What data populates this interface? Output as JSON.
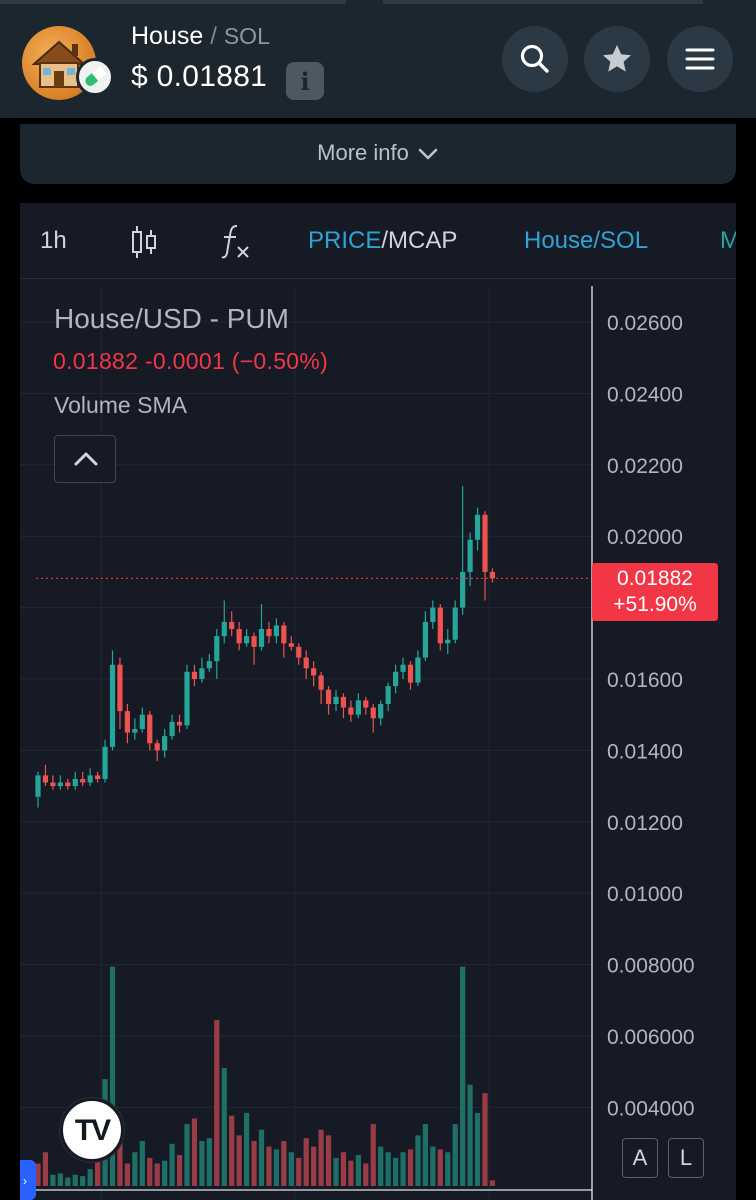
{
  "header": {
    "token_name": "House",
    "separator": "/",
    "quote_symbol": "SOL",
    "price": "$ 0.01881",
    "info_label": "i"
  },
  "icons": {
    "avatar": "house-avatar-icon",
    "badge": "pill-badge-icon",
    "search": "search-icon",
    "favorite": "star-icon",
    "menu": "hamburger-menu-icon",
    "chevron": "chevron-down-icon",
    "candles": "candlestick-icon",
    "indicators": "fx-icon"
  },
  "more_info": {
    "label": "More info"
  },
  "toolbar": {
    "interval": "1h",
    "price_label": "PRICE",
    "mcap_label": "/MCAP",
    "pair_label": "House/SOL",
    "overflow_label": "M"
  },
  "legend": {
    "title": "House/USD - PUM",
    "values": "0.01882  -0.0001 (−0.50%)",
    "volume_label": "Volume SMA"
  },
  "price_tag": {
    "price": "0.01882",
    "change": "+51.90%"
  },
  "colors": {
    "up": "#26a69a",
    "down": "#ef5350",
    "accent_blue": "#2ea3d6",
    "tag_red": "#f23645"
  },
  "chart_data": {
    "type": "candlestick",
    "y_axis_ticks": [
      "0.02600",
      "0.02400",
      "0.02200",
      "0.02000",
      "0.01600",
      "0.01400",
      "0.01200",
      "0.01000",
      "0.008000",
      "0.006000",
      "0.004000"
    ],
    "ylim": [
      0.0035,
      0.0265
    ],
    "last_price": 0.01882,
    "candles": [
      [
        0.0127,
        0.0133,
        0.0124,
        0.0134
      ],
      [
        0.0133,
        0.0131,
        0.013,
        0.0136
      ],
      [
        0.0131,
        0.013,
        0.0129,
        0.0133
      ],
      [
        0.013,
        0.0131,
        0.0129,
        0.0133
      ],
      [
        0.0131,
        0.013,
        0.0129,
        0.0132
      ],
      [
        0.013,
        0.0132,
        0.0129,
        0.0134
      ],
      [
        0.0132,
        0.0131,
        0.013,
        0.0134
      ],
      [
        0.0131,
        0.0133,
        0.013,
        0.0135
      ],
      [
        0.0133,
        0.0132,
        0.0131,
        0.0134
      ],
      [
        0.0132,
        0.0141,
        0.0131,
        0.0143
      ],
      [
        0.0141,
        0.0164,
        0.014,
        0.0168
      ],
      [
        0.0164,
        0.0151,
        0.0146,
        0.0166
      ],
      [
        0.0151,
        0.0145,
        0.0142,
        0.0153
      ],
      [
        0.0145,
        0.0146,
        0.0143,
        0.0149
      ],
      [
        0.0146,
        0.015,
        0.0145,
        0.0152
      ],
      [
        0.015,
        0.0142,
        0.014,
        0.0151
      ],
      [
        0.0142,
        0.014,
        0.0137,
        0.0143
      ],
      [
        0.014,
        0.0144,
        0.0138,
        0.0146
      ],
      [
        0.0144,
        0.0148,
        0.0143,
        0.015
      ],
      [
        0.0148,
        0.0147,
        0.0145,
        0.015
      ],
      [
        0.0147,
        0.0162,
        0.0146,
        0.0164
      ],
      [
        0.0162,
        0.016,
        0.0158,
        0.0164
      ],
      [
        0.016,
        0.0163,
        0.0159,
        0.0166
      ],
      [
        0.0163,
        0.0165,
        0.0162,
        0.0167
      ],
      [
        0.0165,
        0.0172,
        0.016,
        0.0174
      ],
      [
        0.0172,
        0.0176,
        0.017,
        0.0182
      ],
      [
        0.0176,
        0.0174,
        0.0172,
        0.0179
      ],
      [
        0.0174,
        0.017,
        0.0168,
        0.0176
      ],
      [
        0.017,
        0.0172,
        0.0169,
        0.0174
      ],
      [
        0.0172,
        0.0169,
        0.0164,
        0.0173
      ],
      [
        0.0169,
        0.0174,
        0.0168,
        0.0181
      ],
      [
        0.0174,
        0.0172,
        0.017,
        0.0176
      ],
      [
        0.0172,
        0.0175,
        0.017,
        0.0177
      ],
      [
        0.0175,
        0.017,
        0.0166,
        0.0176
      ],
      [
        0.017,
        0.0169,
        0.0168,
        0.0172
      ],
      [
        0.0169,
        0.0166,
        0.0164,
        0.017
      ],
      [
        0.0166,
        0.0163,
        0.016,
        0.0168
      ],
      [
        0.0163,
        0.0161,
        0.0158,
        0.0165
      ],
      [
        0.0161,
        0.0157,
        0.0153,
        0.0162
      ],
      [
        0.0157,
        0.0153,
        0.015,
        0.0158
      ],
      [
        0.0153,
        0.0155,
        0.0151,
        0.0157
      ],
      [
        0.0155,
        0.0152,
        0.0149,
        0.0156
      ],
      [
        0.0152,
        0.015,
        0.0148,
        0.0154
      ],
      [
        0.015,
        0.0154,
        0.0149,
        0.0156
      ],
      [
        0.0154,
        0.0152,
        0.015,
        0.0155
      ],
      [
        0.0152,
        0.0149,
        0.0145,
        0.0153
      ],
      [
        0.0149,
        0.0153,
        0.0147,
        0.0154
      ],
      [
        0.0153,
        0.0158,
        0.0151,
        0.0159
      ],
      [
        0.0158,
        0.0162,
        0.0156,
        0.0164
      ],
      [
        0.0162,
        0.0164,
        0.016,
        0.0166
      ],
      [
        0.0164,
        0.0159,
        0.0157,
        0.0165
      ],
      [
        0.0159,
        0.0166,
        0.0158,
        0.0168
      ],
      [
        0.0166,
        0.0176,
        0.0165,
        0.0179
      ],
      [
        0.0176,
        0.018,
        0.0174,
        0.0182
      ],
      [
        0.018,
        0.017,
        0.0168,
        0.0181
      ],
      [
        0.017,
        0.0171,
        0.0167,
        0.0174
      ],
      [
        0.0171,
        0.018,
        0.017,
        0.0182
      ],
      [
        0.018,
        0.019,
        0.0178,
        0.0214
      ],
      [
        0.019,
        0.0199,
        0.0186,
        0.0201
      ],
      [
        0.0199,
        0.0206,
        0.0196,
        0.0208
      ],
      [
        0.0206,
        0.019,
        0.0182,
        0.0207
      ],
      [
        0.019,
        0.01882,
        0.0187,
        0.0191
      ]
    ],
    "volumes": [
      [
        0.0008,
        0
      ],
      [
        0.0012,
        0
      ],
      [
        0.0004,
        1
      ],
      [
        0.00045,
        1
      ],
      [
        0.0003,
        1
      ],
      [
        0.0004,
        1
      ],
      [
        0.00035,
        1
      ],
      [
        0.0006,
        1
      ],
      [
        0.0009,
        0
      ],
      [
        0.0038,
        1
      ],
      [
        0.0078,
        1
      ],
      [
        0.0018,
        0
      ],
      [
        0.0008,
        0
      ],
      [
        0.0012,
        1
      ],
      [
        0.0016,
        1
      ],
      [
        0.001,
        0
      ],
      [
        0.0008,
        0
      ],
      [
        0.0009,
        1
      ],
      [
        0.0015,
        1
      ],
      [
        0.0011,
        0
      ],
      [
        0.0022,
        1
      ],
      [
        0.0024,
        0
      ],
      [
        0.0016,
        1
      ],
      [
        0.0017,
        1
      ],
      [
        0.0059,
        0
      ],
      [
        0.0042,
        1
      ],
      [
        0.0025,
        0
      ],
      [
        0.0018,
        0
      ],
      [
        0.0026,
        1
      ],
      [
        0.0016,
        0
      ],
      [
        0.002,
        1
      ],
      [
        0.0014,
        0
      ],
      [
        0.0013,
        1
      ],
      [
        0.0016,
        0
      ],
      [
        0.0012,
        1
      ],
      [
        0.001,
        0
      ],
      [
        0.0017,
        0
      ],
      [
        0.0014,
        0
      ],
      [
        0.002,
        0
      ],
      [
        0.0018,
        0
      ],
      [
        0.001,
        1
      ],
      [
        0.0012,
        0
      ],
      [
        0.0009,
        0
      ],
      [
        0.0011,
        1
      ],
      [
        0.0008,
        0
      ],
      [
        0.0022,
        0
      ],
      [
        0.0014,
        1
      ],
      [
        0.0012,
        1
      ],
      [
        0.001,
        1
      ],
      [
        0.0012,
        1
      ],
      [
        0.0013,
        0
      ],
      [
        0.0018,
        1
      ],
      [
        0.0022,
        1
      ],
      [
        0.0014,
        1
      ],
      [
        0.0013,
        0
      ],
      [
        0.0012,
        1
      ],
      [
        0.0022,
        1
      ],
      [
        0.0078,
        1
      ],
      [
        0.0036,
        1
      ],
      [
        0.0026,
        1
      ],
      [
        0.0033,
        0
      ],
      [
        0.0002,
        0
      ]
    ]
  }
}
